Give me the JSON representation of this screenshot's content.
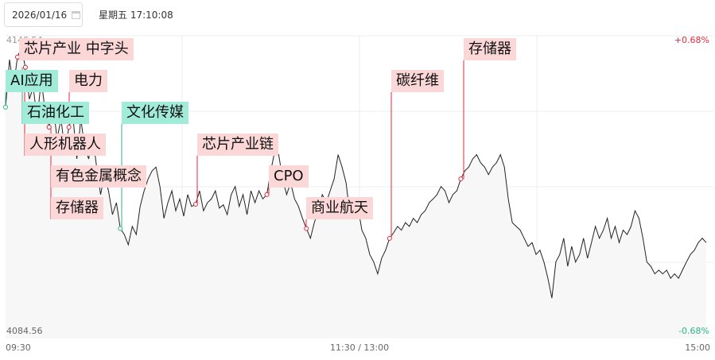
{
  "header": {
    "date": "2026/01/16",
    "weekday_time": "星期五 17:10:08"
  },
  "colors": {
    "up": "#e4283c",
    "down": "#2fb38a",
    "line": "#222",
    "grid": "#eee",
    "red_label": "#fcd7d7",
    "green_label": "#a0ecd8"
  },
  "chart_data": {
    "type": "line",
    "x_ticks": [
      "09:30",
      "11:30 / 13:00",
      "15:00"
    ],
    "ylim": [
      4084.56,
      4140.54
    ],
    "y_labels": {
      "top": "4140.54",
      "bottom": "4084.56"
    },
    "pct_labels": {
      "top": "+0.68%",
      "bottom": "-0.68%"
    },
    "prev_close": 4112.55,
    "grid": true,
    "values": [
      4127.3,
      4136.1,
      4131.0,
      4136.6,
      4138.3,
      4134.7,
      4128.8,
      4131.0,
      4125.1,
      4132.4,
      4126.6,
      4123.6,
      4128.0,
      4121.4,
      4125.1,
      4119.2,
      4123.6,
      4125.8,
      4117.7,
      4125.1,
      4119.9,
      4117.7,
      4122.1,
      4116.2,
      4111.1,
      4114.8,
      4111.8,
      4107.4,
      4109.6,
      4104.8,
      4103.7,
      4101.8,
      4105.2,
      4103.7,
      4108.9,
      4111.8,
      4114.0,
      4115.5,
      4116.2,
      4112.6,
      4106.7,
      4109.6,
      4111.8,
      4108.1,
      4110.3,
      4107.1,
      4111.1,
      4108.9,
      4109.3,
      4111.8,
      4108.1,
      4109.6,
      4110.3,
      4111.8,
      4108.6,
      4109.2,
      4107.4,
      4111.1,
      4112.6,
      4108.9,
      4111.1,
      4107.4,
      4111.8,
      4109.6,
      4111.8,
      4110.3,
      4111.1,
      4115.5,
      4119.2,
      4118.5,
      4114.0,
      4111.1,
      4113.3,
      4110.3,
      4108.9,
      4106.7,
      4104.8,
      4103.0,
      4105.9,
      4108.1,
      4111.1,
      4109.6,
      4111.8,
      4114.0,
      4118.5,
      4116.2,
      4113.3,
      4107.4,
      4108.1,
      4108.9,
      4104.5,
      4103.0,
      4100.0,
      4098.6,
      4096.4,
      4099.3,
      4100.8,
      4103.0,
      4104.0,
      4105.2,
      4104.5,
      4105.9,
      4105.2,
      4106.7,
      4105.9,
      4107.4,
      4108.1,
      4109.6,
      4110.3,
      4111.1,
      4112.6,
      4111.8,
      4109.6,
      4111.1,
      4111.8,
      4114.0,
      4115.5,
      4116.2,
      4117.7,
      4118.5,
      4117.0,
      4116.2,
      4114.8,
      4116.2,
      4117.0,
      4118.5,
      4116.2,
      4110.3,
      4105.9,
      4105.2,
      4104.5,
      4103.0,
      4101.5,
      4102.2,
      4100.0,
      4100.8,
      4098.6,
      4095.6,
      4091.9,
      4098.6,
      4100.0,
      4103.0,
      4097.8,
      4101.5,
      4098.6,
      4100.0,
      4103.0,
      4099.3,
      4102.2,
      4105.2,
      4103.0,
      4104.5,
      4106.7,
      4103.0,
      4105.2,
      4102.2,
      4104.5,
      4103.7,
      4105.2,
      4108.1,
      4106.7,
      4103.0,
      4098.6,
      4097.8,
      4096.4,
      4097.1,
      4096.4,
      4097.1,
      4095.6,
      4096.4,
      4095.6,
      4097.1,
      4098.6,
      4100.0,
      4100.8,
      4102.2,
      4103.0,
      4102.2
    ],
    "annotations": [
      {
        "label": "芯片产业 中字头",
        "color": "red"
      },
      {
        "label": "AI应用",
        "color": "green"
      },
      {
        "label": "电力",
        "color": "red"
      },
      {
        "label": "石油化工",
        "color": "green"
      },
      {
        "label": "人形机器人",
        "color": "red"
      },
      {
        "label": "有色金属概念",
        "color": "red"
      },
      {
        "label": "存储器",
        "color": "red"
      },
      {
        "label": "文化传媒",
        "color": "green"
      },
      {
        "label": "芯片产业链",
        "color": "red"
      },
      {
        "label": "CPO",
        "color": "red"
      },
      {
        "label": "商业航天",
        "color": "red"
      },
      {
        "label": "碳纤维",
        "color": "red"
      },
      {
        "label": "存储器",
        "color": "red"
      }
    ]
  }
}
